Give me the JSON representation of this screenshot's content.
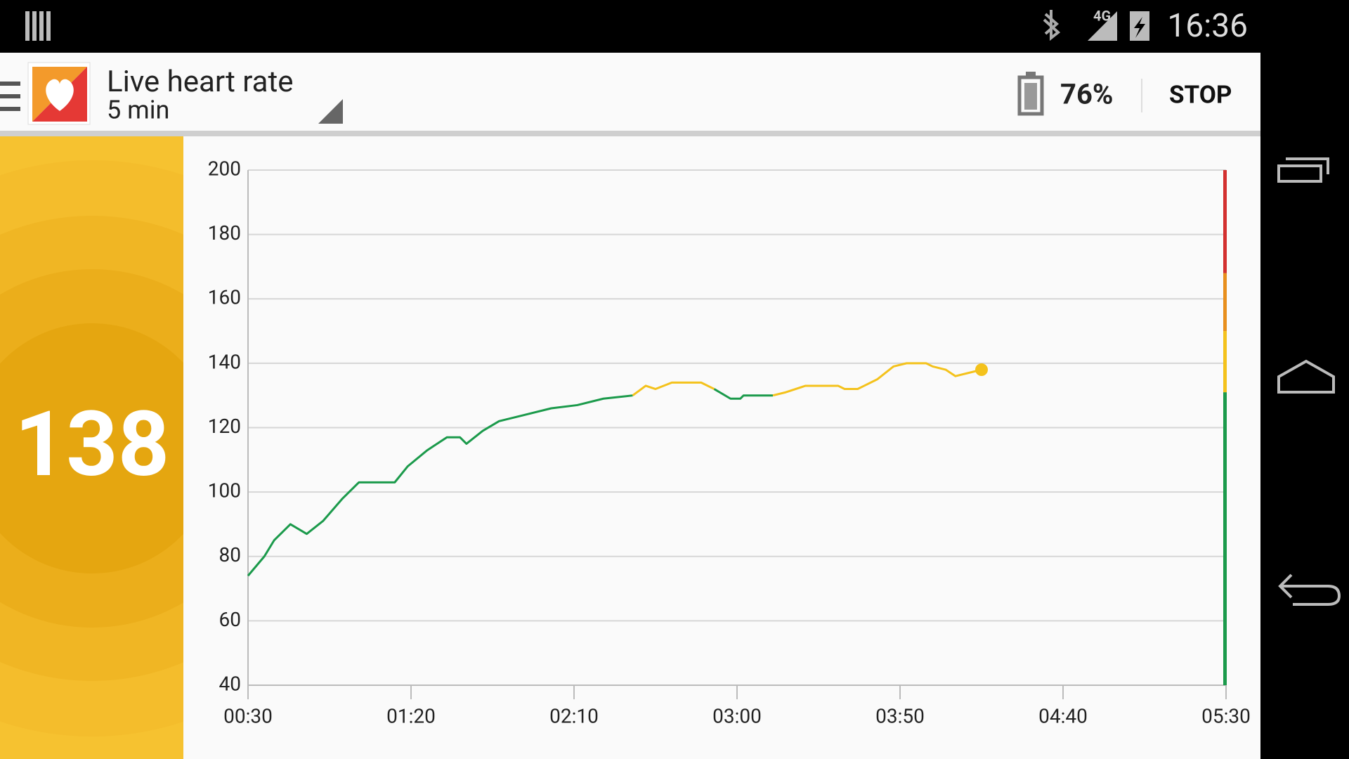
{
  "status_bar": {
    "network": "4G",
    "time": "16:36"
  },
  "app_bar": {
    "title": "Live heart rate",
    "subtitle": "5 min",
    "battery": "76%",
    "action": "STOP"
  },
  "current_value": 138,
  "chart_data": {
    "type": "line",
    "x": [
      30,
      35,
      38,
      43,
      48,
      53,
      59,
      64,
      75,
      79,
      85,
      91,
      95,
      97,
      102,
      107,
      115,
      123,
      131,
      139,
      148,
      152,
      155,
      160,
      169,
      173,
      178,
      181,
      182,
      191,
      195,
      201,
      211,
      213,
      217,
      219,
      223,
      228,
      232,
      238,
      240,
      244,
      247,
      251,
      255
    ],
    "values": [
      74,
      80,
      85,
      90,
      87,
      91,
      98,
      103,
      103,
      108,
      113,
      117,
      117,
      115,
      119,
      122,
      124,
      126,
      127,
      129,
      130,
      133,
      132,
      134,
      134,
      132,
      129,
      129,
      130,
      130,
      131,
      133,
      133,
      132,
      132,
      133,
      135,
      139,
      140,
      140,
      139,
      138,
      136,
      137,
      138
    ],
    "xlim": [
      30,
      330
    ],
    "xticks": [
      {
        "value": 30,
        "label": "00:30"
      },
      {
        "value": 80,
        "label": "01:20"
      },
      {
        "value": 130,
        "label": "02:10"
      },
      {
        "value": 180,
        "label": "03:00"
      },
      {
        "value": 230,
        "label": "03:50"
      },
      {
        "value": 280,
        "label": "04:40"
      },
      {
        "value": 330,
        "label": "05:30"
      }
    ],
    "ylim": [
      40,
      200
    ],
    "yticks": [
      40,
      60,
      80,
      100,
      120,
      140,
      160,
      180,
      200
    ],
    "grid": true,
    "zones": [
      {
        "from": 40,
        "to": 131,
        "color": "#1b9a4b"
      },
      {
        "from": 131,
        "to": 150,
        "color": "#f4c21c"
      },
      {
        "from": 150,
        "to": 168,
        "color": "#e88f1d"
      },
      {
        "from": 168,
        "to": 200,
        "color": "#d3302f"
      }
    ]
  }
}
